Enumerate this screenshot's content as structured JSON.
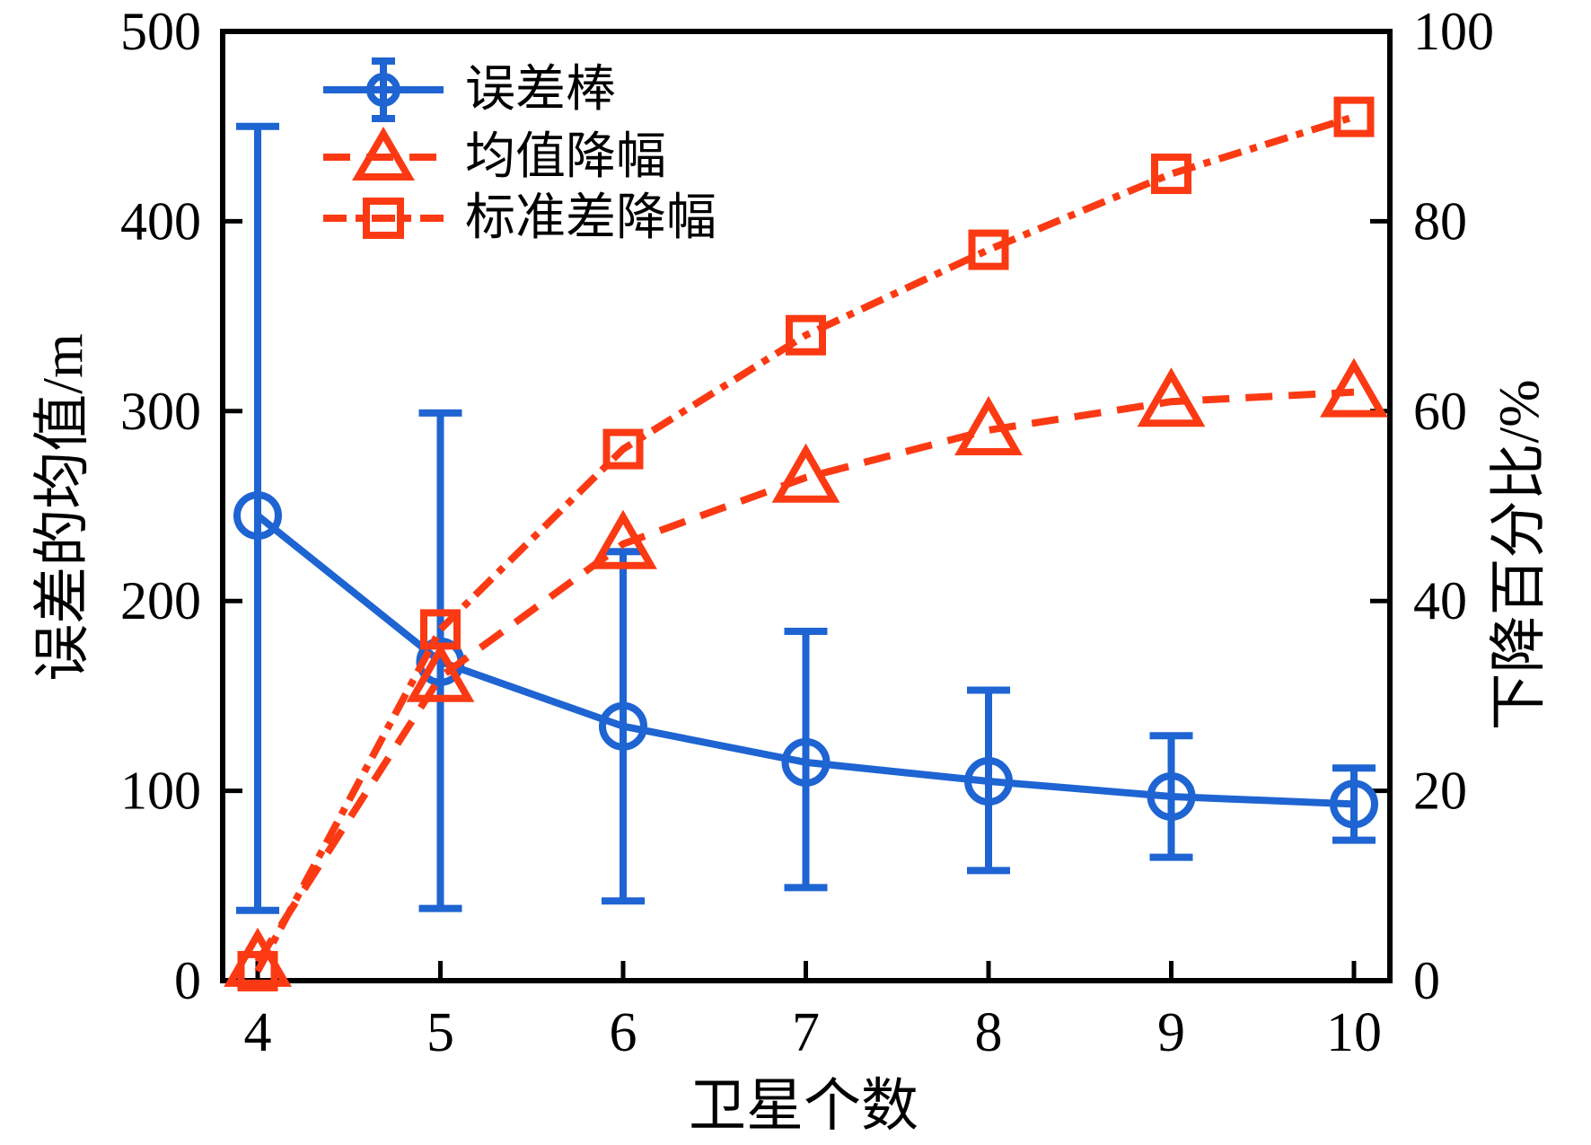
{
  "chart_data": {
    "type": "line",
    "title": "",
    "x": [
      4,
      5,
      6,
      7,
      8,
      9,
      10
    ],
    "xlabel": "卫星个数",
    "grid": false,
    "legend_position": "upper-left",
    "axes": {
      "left": {
        "label": "误差的均值/m",
        "range": [
          0,
          500
        ],
        "ticks": [
          0,
          100,
          200,
          300,
          400,
          500
        ]
      },
      "right": {
        "label": "下降百分比/%",
        "range": [
          0,
          100
        ],
        "ticks": [
          0,
          20,
          40,
          60,
          80,
          100
        ]
      },
      "x_ticks": [
        4,
        5,
        6,
        7,
        8,
        9,
        10
      ]
    },
    "series": [
      {
        "name": "误差棒",
        "axis": "left",
        "marker": "circle",
        "line_style": "solid",
        "color": "#1E64D2",
        "values": [
          245,
          168,
          134,
          115,
          105,
          97,
          93
        ],
        "error_plus": [
          205,
          131,
          92,
          69,
          48,
          32,
          19
        ],
        "error_minus": [
          208,
          130,
          92,
          66,
          47,
          32,
          19
        ]
      },
      {
        "name": "均值降幅",
        "axis": "right",
        "marker": "triangle",
        "line_style": "dashed",
        "color": "#FB3A13",
        "values": [
          2,
          32,
          46,
          53,
          58,
          61,
          62
        ]
      },
      {
        "name": "标准差降幅",
        "axis": "right",
        "marker": "square",
        "line_style": "dashdot",
        "color": "#FB3A13",
        "values": [
          1,
          37,
          56,
          68,
          77,
          85,
          91
        ]
      }
    ]
  },
  "colors": {
    "blue": "#1E64D2",
    "red": "#FB3A13",
    "axis": "#000000",
    "background": "#FFFFFF",
    "text": "#000000"
  }
}
